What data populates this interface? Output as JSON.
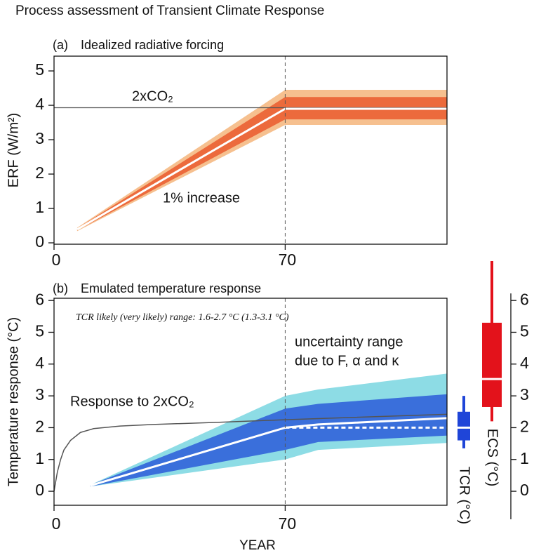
{
  "title": "Process assessment of Transient Climate Response",
  "chart_data": [
    {
      "type": "line",
      "panel_label": "(a)",
      "title": "Idealized radiative forcing",
      "ylabel": "ERF (W/m²)",
      "xlim": [
        0,
        119
      ],
      "ylim": [
        -0.04,
        5.43
      ],
      "xticks": [
        0,
        70
      ],
      "yticks": [
        0,
        1,
        2,
        3,
        4,
        5
      ],
      "hline": 3.93,
      "hline_color": "#555555",
      "vline": 70,
      "annotations": [
        "2xCO₂",
        "1% increase"
      ],
      "bands": [
        {
          "color": "#f6c08f",
          "x": [
            7,
            70,
            119
          ],
          "lower": [
            0.34,
            3.43,
            3.43
          ],
          "upper": [
            0.44,
            4.45,
            4.45
          ]
        },
        {
          "color": "#ec6a3c",
          "x": [
            7,
            70,
            119
          ],
          "lower": [
            0.36,
            3.59,
            3.59
          ],
          "upper": [
            0.42,
            4.24,
            4.24
          ]
        }
      ],
      "series": [
        {
          "color": "#ffffff",
          "x": [
            7,
            70,
            119
          ],
          "values": [
            0.39,
            3.9,
            3.9
          ]
        }
      ]
    },
    {
      "type": "line",
      "panel_label": "(b)",
      "title": "Emulated temperature response",
      "ylabel": "Temperature response (°C)",
      "xlabel": "YEAR",
      "xlim": [
        0,
        119
      ],
      "ylim": [
        -0.44,
        6.07
      ],
      "xticks": [
        0,
        70
      ],
      "yticks": [
        0,
        1,
        2,
        3,
        4,
        5,
        6
      ],
      "y2lim": [
        -0.44,
        6.07
      ],
      "y2ticks": [
        0,
        1,
        2,
        3,
        4,
        5,
        6
      ],
      "vline": 70,
      "annotations": [
        "TCR likely (very likely) range: 1.6-2.7 °C (1.3-3.1 °C)",
        "uncertainty range",
        "due to F, α and κ",
        "Response to 2xCO₂"
      ],
      "bands": [
        {
          "color": "#8ddce5",
          "x": [
            11,
            70,
            80,
            119
          ],
          "lower": [
            0.15,
            1.0,
            1.3,
            1.52
          ],
          "upper": [
            0.2,
            3.0,
            3.2,
            3.7
          ]
        },
        {
          "color": "#3a6fdb",
          "x": [
            11,
            70,
            80,
            119
          ],
          "lower": [
            0.15,
            1.3,
            1.55,
            1.75
          ],
          "upper": [
            0.2,
            2.6,
            2.75,
            3.05
          ]
        }
      ],
      "series": [
        {
          "color": "#555555",
          "x": [
            0,
            1,
            2,
            3,
            5,
            8,
            12,
            20,
            30,
            50,
            70,
            90,
            119
          ],
          "values": [
            0,
            0.6,
            1.0,
            1.3,
            1.6,
            1.85,
            1.97,
            2.05,
            2.1,
            2.17,
            2.25,
            2.32,
            2.42
          ]
        },
        {
          "color": "#ffffff",
          "x": [
            11,
            70,
            80,
            119
          ],
          "values": [
            0.18,
            2.0,
            2.1,
            2.3
          ]
        },
        {
          "color": "#ffffff",
          "dashed": true,
          "x": [
            70,
            119
          ],
          "values": [
            2.0,
            2.0
          ]
        }
      ],
      "boxes": [
        {
          "label": "TCR (°C)",
          "color": "#1f45d8",
          "whisker_low": 1.35,
          "q1": 1.6,
          "median": 2.0,
          "q3": 2.5,
          "whisker_high": 3.0
        },
        {
          "label": "ECS (°C)",
          "color": "#e3121b",
          "whisker_low": 2.2,
          "q1": 2.65,
          "median": 3.53,
          "q3": 5.3,
          "whisker_high": 7.24
        }
      ]
    }
  ]
}
